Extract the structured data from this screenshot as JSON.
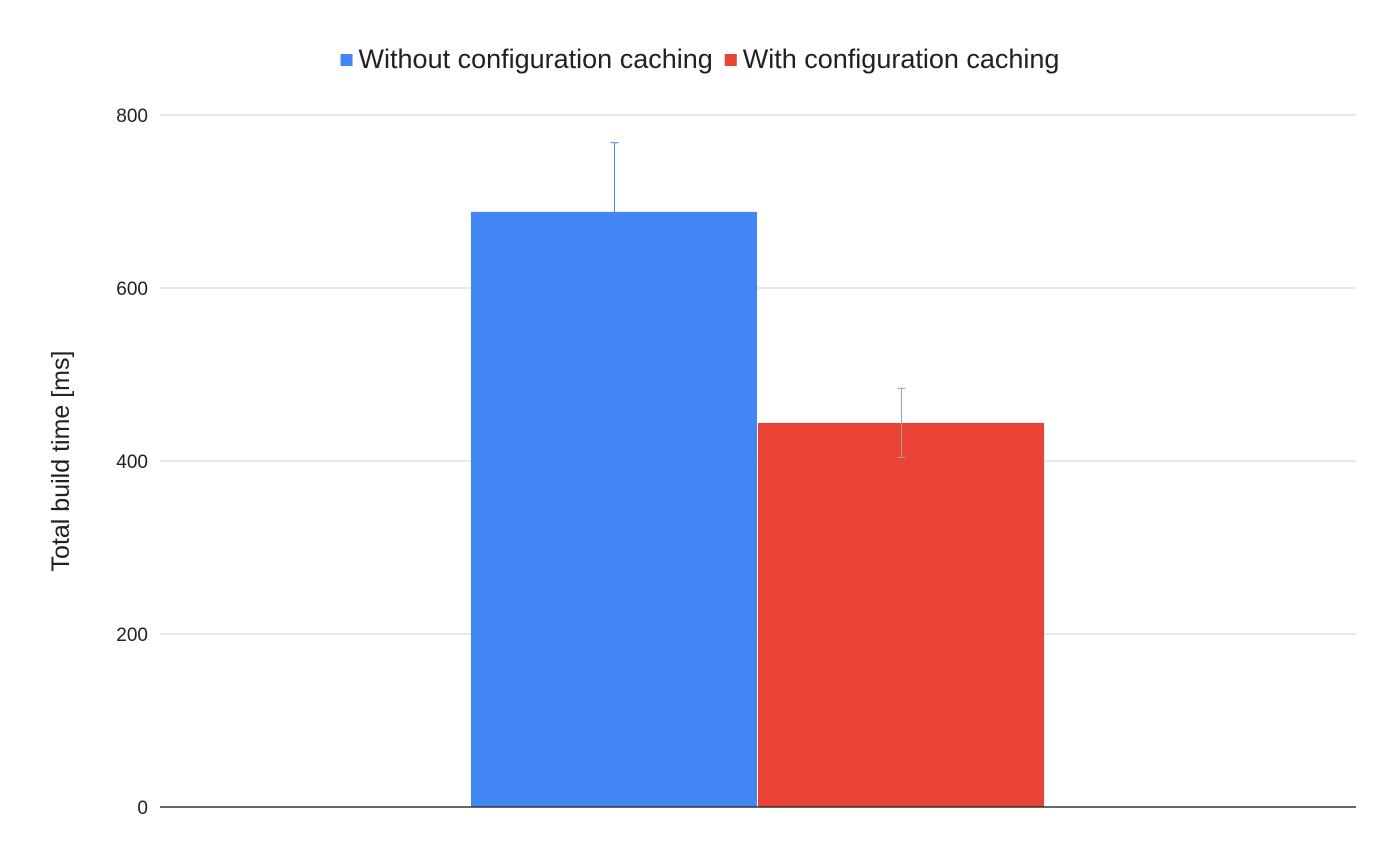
{
  "chart_data": {
    "type": "bar",
    "title": "",
    "xlabel": "",
    "ylabel": "Total build time [ms]",
    "ylim": [
      0,
      800
    ],
    "yticks": [
      0,
      200,
      400,
      600,
      800
    ],
    "grid": true,
    "legend": "top-center",
    "categories": [
      ""
    ],
    "series": [
      {
        "name": "Without configuration caching",
        "color": "#4285f4",
        "values": [
          688
        ],
        "error": [
          80
        ],
        "error_color": "#4285f4"
      },
      {
        "name": "With configuration caching",
        "color": "#ea4335",
        "values": [
          444
        ],
        "error": [
          40
        ],
        "error_color": "#9e9e9e"
      }
    ]
  }
}
